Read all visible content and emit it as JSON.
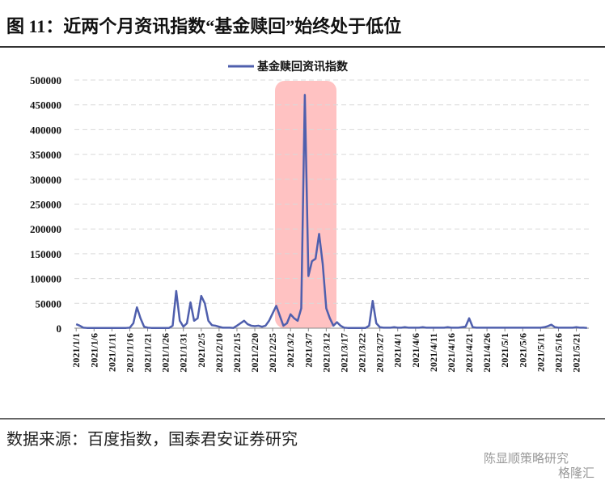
{
  "title": "图 11：近两个月资讯指数“基金赎回”始终处于低位",
  "source": "数据来源：百度指数，国泰君安证券研究",
  "watermark": [
    "陈显顺策略研究",
    "格隆汇"
  ],
  "chart_data": {
    "type": "line",
    "categories": [
      "2021/1/1",
      null,
      null,
      null,
      null,
      "2021/1/6",
      null,
      null,
      null,
      null,
      "2021/1/11",
      null,
      null,
      null,
      null,
      "2021/1/16",
      null,
      null,
      null,
      null,
      "2021/1/21",
      null,
      null,
      null,
      null,
      "2021/1/26",
      null,
      null,
      null,
      null,
      "2021/1/31",
      null,
      null,
      null,
      null,
      "2021/2/5",
      null,
      null,
      null,
      null,
      "2021/2/10",
      null,
      null,
      null,
      null,
      "2021/2/15",
      null,
      null,
      null,
      null,
      "2021/2/20",
      null,
      null,
      null,
      null,
      "2021/2/25",
      null,
      null,
      null,
      null,
      "2021/3/2",
      null,
      null,
      null,
      null,
      "2021/3/7",
      null,
      null,
      null,
      null,
      "2021/3/12",
      null,
      null,
      null,
      null,
      "2021/3/17",
      null,
      null,
      null,
      null,
      "2021/3/22",
      null,
      null,
      null,
      null,
      "2021/3/27",
      null,
      null,
      null,
      null,
      "2021/4/1",
      null,
      null,
      null,
      null,
      "2021/4/6",
      null,
      null,
      null,
      null,
      "2021/4/11",
      null,
      null,
      null,
      null,
      "2021/4/16",
      null,
      null,
      null,
      null,
      "2021/4/21",
      null,
      null,
      null,
      null,
      "2021/4/26",
      null,
      null,
      null,
      null,
      "2021/5/1",
      null,
      null,
      null,
      null,
      "2021/5/6",
      null,
      null,
      null,
      null,
      "2021/5/11",
      null,
      null,
      null,
      null,
      "2021/5/16",
      null,
      null,
      null,
      null,
      "2021/5/21",
      null,
      null,
      null
    ],
    "series": [
      {
        "name": "基金赎回资讯指数",
        "color": "#4f5fad",
        "values": [
          8000,
          5000,
          1000,
          500,
          500,
          500,
          500,
          500,
          500,
          500,
          500,
          500,
          500,
          500,
          500,
          1000,
          10000,
          42000,
          20000,
          3000,
          1000,
          500,
          500,
          500,
          500,
          500,
          500,
          5000,
          75000,
          15000,
          3000,
          10000,
          52000,
          15000,
          20000,
          65000,
          50000,
          15000,
          6000,
          5000,
          3000,
          1000,
          1000,
          1000,
          500,
          5000,
          10000,
          15000,
          8000,
          5000,
          4000,
          5000,
          3000,
          5000,
          15000,
          30000,
          45000,
          25000,
          5000,
          10000,
          28000,
          20000,
          15000,
          40000,
          470000,
          105000,
          135000,
          140000,
          190000,
          130000,
          40000,
          20000,
          5000,
          12000,
          5000,
          1000,
          500,
          500,
          500,
          500,
          500,
          500,
          5000,
          55000,
          10000,
          2000,
          1000,
          1000,
          1000,
          2000,
          1000,
          1000,
          2000,
          1000,
          1000,
          1000,
          1000,
          2000,
          1000,
          1000,
          1000,
          1000,
          1000,
          1000,
          2000,
          1000,
          1000,
          1000,
          2000,
          3000,
          20000,
          2000,
          1000,
          1000,
          1000,
          1000,
          1000,
          1000,
          1000,
          1000,
          1000,
          1000,
          1000,
          1000,
          1000,
          1000,
          1000,
          1000,
          1000,
          1000,
          1000,
          2000,
          4000,
          7000,
          2000,
          1000,
          1000,
          1000,
          1000,
          1000,
          2000,
          1000,
          1000,
          500
        ]
      }
    ],
    "ylim": [
      0,
      500000
    ],
    "yticks": [
      0,
      50000,
      100000,
      150000,
      200000,
      250000,
      300000,
      350000,
      400000,
      450000,
      500000
    ],
    "grid": true,
    "legend": "top"
  }
}
